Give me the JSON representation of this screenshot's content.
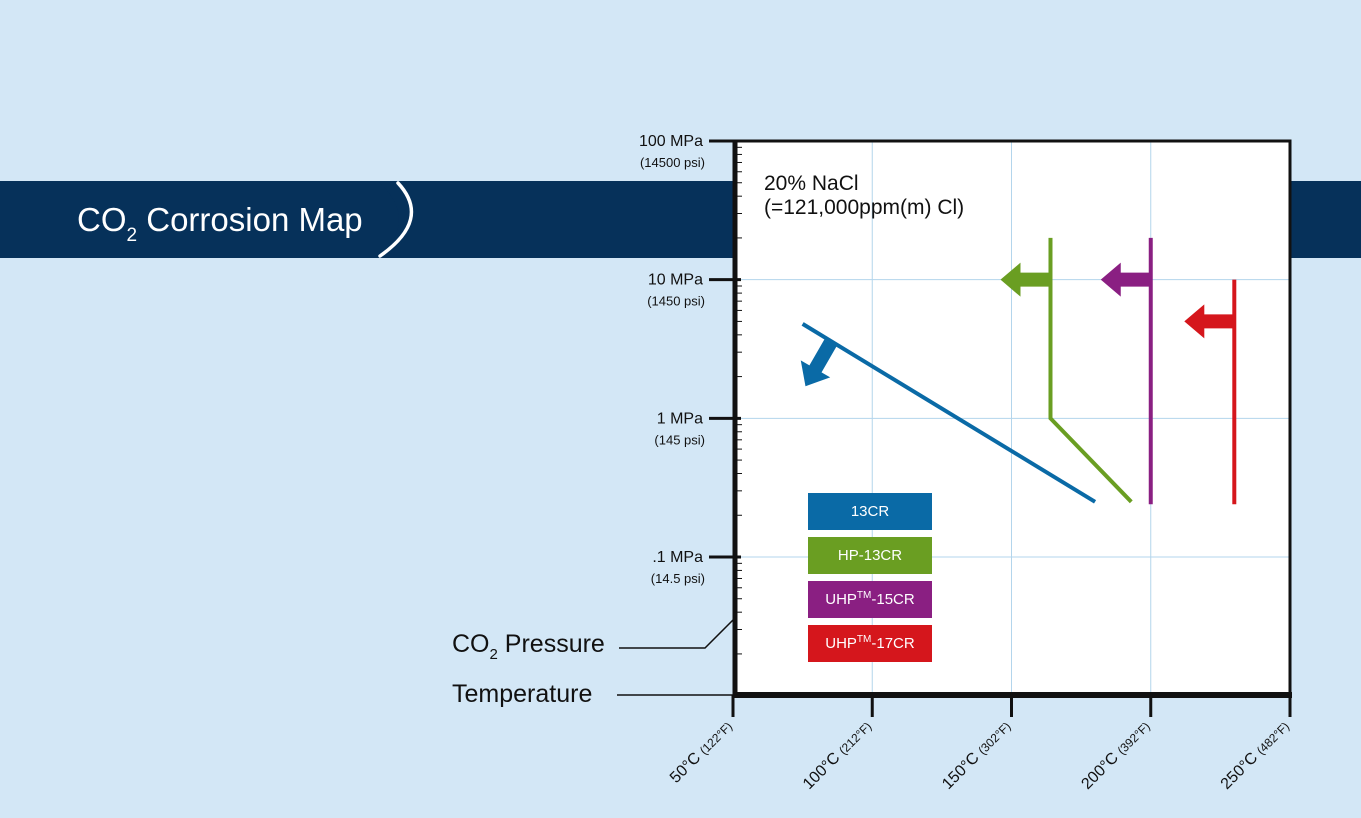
{
  "header": {
    "title_pre": "CO",
    "title_sub": "2",
    "title_post": " Corrosion Map"
  },
  "colors": {
    "background": "#d3e7f6",
    "banner": "#06315a",
    "13CR": "#0a6aa6",
    "HP-13CR": "#6a9e22",
    "UHP-15CR": "#8a1f82",
    "UHP-17CR": "#d5161c"
  },
  "chart_data": {
    "type": "line",
    "note_line1": "20% NaCl",
    "note_line2": "(=121,000ppm(m) Cl)",
    "y_axis": {
      "label_pre": "CO",
      "label_sub": "2",
      "label_post": " Pressure",
      "scale": "log",
      "unit": "MPa",
      "ylim": [
        0.01,
        100
      ],
      "ticks": [
        {
          "value": 100,
          "label": "100 MPa",
          "sublabel": "(14500 psi)"
        },
        {
          "value": 10,
          "label": "10 MPa",
          "sublabel": "(1450 psi)"
        },
        {
          "value": 1,
          "label": "1 MPa",
          "sublabel": "(145 psi)"
        },
        {
          "value": 0.1,
          "label": ".1 MPa",
          "sublabel": "(14.5 psi)"
        }
      ]
    },
    "x_axis": {
      "label": "Temperature",
      "unit": "°C",
      "xlim": [
        50,
        250
      ],
      "ticks": [
        {
          "value": 50,
          "label": "50°C ",
          "sublabel": "(122°F)"
        },
        {
          "value": 100,
          "label": "100°C ",
          "sublabel": "(212°F)"
        },
        {
          "value": 150,
          "label": "150°C ",
          "sublabel": "(302°F)"
        },
        {
          "value": 200,
          "label": "200°C ",
          "sublabel": "(392°F)"
        },
        {
          "value": 250,
          "label": "250°C ",
          "sublabel": "(482°F)"
        }
      ]
    },
    "grid": true,
    "series": [
      {
        "name": "13CR",
        "name_pre": "13CR",
        "name_sup": "",
        "name_post": "",
        "color": "#0a6aa6",
        "points": [
          [
            75,
            4.8
          ],
          [
            180,
            0.25
          ]
        ],
        "arrow": {
          "at": [
            85,
            3.5
          ],
          "direction": "lower-left"
        }
      },
      {
        "name": "HP-13CR",
        "name_pre": "HP-13CR",
        "name_sup": "",
        "name_post": "",
        "color": "#6a9e22",
        "points": [
          [
            164,
            20
          ],
          [
            164,
            1.0
          ],
          [
            193,
            0.25
          ]
        ],
        "arrow": {
          "at": [
            164,
            10
          ],
          "direction": "left"
        }
      },
      {
        "name": "UHP-15CR",
        "name_pre": "UHP",
        "name_sup": "TM",
        "name_post": "-15CR",
        "color": "#8a1f82",
        "points": [
          [
            200,
            20
          ],
          [
            200,
            0.24
          ]
        ],
        "arrow": {
          "at": [
            200,
            10
          ],
          "direction": "left"
        }
      },
      {
        "name": "UHP-17CR",
        "name_pre": "UHP",
        "name_sup": "TM",
        "name_post": "-17CR",
        "color": "#d5161c",
        "points": [
          [
            230,
            10
          ],
          [
            230,
            0.24
          ]
        ],
        "arrow": {
          "at": [
            230,
            5
          ],
          "direction": "left"
        }
      }
    ]
  }
}
